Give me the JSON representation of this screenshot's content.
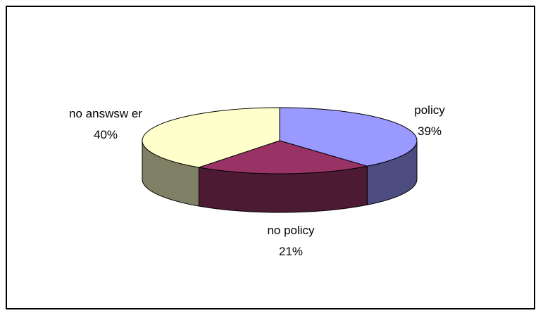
{
  "chart_data": {
    "type": "pie",
    "style": "3d",
    "title": "",
    "series": [
      {
        "name": "policy",
        "value": 39,
        "percent_label": "39%",
        "color": "#9999ff",
        "side_color": "#4c4c80"
      },
      {
        "name": "no policy",
        "value": 21,
        "percent_label": "21%",
        "color": "#993366",
        "side_color": "#4d1a33"
      },
      {
        "name": "no answer",
        "value": 40,
        "percent_label": "40%",
        "color": "#ffffcc",
        "side_color": "#808066"
      }
    ],
    "labels": {
      "policy": {
        "line1": "policy",
        "line2": "39%"
      },
      "no_policy": {
        "line1": "no policy",
        "line2": "21%"
      },
      "no_answer": {
        "line1": "no answsw er",
        "line2": "40%"
      }
    },
    "legend": "none",
    "border_color": "#000000"
  }
}
